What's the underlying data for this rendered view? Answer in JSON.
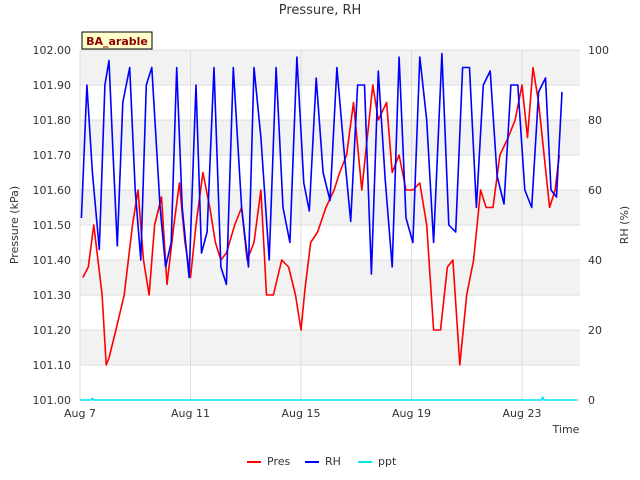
{
  "chart_data": {
    "type": "line",
    "title": "Pressure, RH",
    "site_label": "BA_arable",
    "xlabel": "Time",
    "ylabel_left": "Pressure (kPa)",
    "ylabel_right": "RH (%)",
    "xlim": [
      7,
      25.1
    ],
    "ylim_left": [
      101.0,
      102.0
    ],
    "ylim_right": [
      0,
      100
    ],
    "x_ticks": [
      {
        "value": 7,
        "label": "Aug 7"
      },
      {
        "value": 11,
        "label": "Aug 11"
      },
      {
        "value": 15,
        "label": "Aug 15"
      },
      {
        "value": 19,
        "label": "Aug 19"
      },
      {
        "value": 23,
        "label": "Aug 23"
      }
    ],
    "y_ticks_left": [
      "101.00",
      "101.10",
      "101.20",
      "101.30",
      "101.40",
      "101.50",
      "101.60",
      "101.70",
      "101.80",
      "101.90",
      "102.00"
    ],
    "y_ticks_right": [
      "0",
      "20",
      "40",
      "60",
      "80",
      "100"
    ],
    "grid": true,
    "legend_position": "bottom-center",
    "series": [
      {
        "name": "Pres",
        "axis": "left",
        "color": "#ff0000",
        "x": [
          7.1,
          7.3,
          7.5,
          7.8,
          7.95,
          8.05,
          8.3,
          8.6,
          8.9,
          9.1,
          9.3,
          9.5,
          9.7,
          9.95,
          10.15,
          10.4,
          10.6,
          10.8,
          11.0,
          11.2,
          11.45,
          11.7,
          11.9,
          12.1,
          12.3,
          12.6,
          12.85,
          13.05,
          13.3,
          13.55,
          13.75,
          14.0,
          14.3,
          14.55,
          14.8,
          15.0,
          15.15,
          15.35,
          15.6,
          15.9,
          16.2,
          16.4,
          16.65,
          16.9,
          17.2,
          17.4,
          17.6,
          17.8,
          18.1,
          18.3,
          18.55,
          18.8,
          19.05,
          19.3,
          19.55,
          19.8,
          20.05,
          20.3,
          20.5,
          20.75,
          21.0,
          21.25,
          21.5,
          21.7,
          21.95,
          22.2,
          22.5,
          22.75,
          23.0,
          23.2,
          23.4,
          23.6,
          23.8,
          24.0,
          24.2,
          24.35
        ],
        "values": [
          101.35,
          101.38,
          101.5,
          101.3,
          101.1,
          101.12,
          101.2,
          101.3,
          101.5,
          101.6,
          101.4,
          101.3,
          101.5,
          101.58,
          101.33,
          101.5,
          101.62,
          101.45,
          101.35,
          101.5,
          101.65,
          101.55,
          101.45,
          101.4,
          101.42,
          101.5,
          101.55,
          101.4,
          101.45,
          101.6,
          101.3,
          101.3,
          101.4,
          101.38,
          101.3,
          101.2,
          101.32,
          101.45,
          101.48,
          101.55,
          101.6,
          101.65,
          101.7,
          101.85,
          101.6,
          101.75,
          101.9,
          101.8,
          101.85,
          101.65,
          101.7,
          101.6,
          101.6,
          101.62,
          101.5,
          101.2,
          101.2,
          101.38,
          101.4,
          101.1,
          101.3,
          101.4,
          101.6,
          101.55,
          101.55,
          101.7,
          101.75,
          101.8,
          101.9,
          101.75,
          101.95,
          101.85,
          101.7,
          101.55,
          101.6,
          101.7
        ]
      },
      {
        "name": "RH",
        "axis": "right",
        "color": "#0000ff",
        "x": [
          7.05,
          7.25,
          7.45,
          7.7,
          7.9,
          8.05,
          8.2,
          8.35,
          8.55,
          8.8,
          9.0,
          9.2,
          9.4,
          9.6,
          9.9,
          10.1,
          10.3,
          10.5,
          10.7,
          10.95,
          11.2,
          11.4,
          11.6,
          11.85,
          12.1,
          12.3,
          12.55,
          12.85,
          13.1,
          13.3,
          13.55,
          13.85,
          14.1,
          14.35,
          14.6,
          14.85,
          15.1,
          15.3,
          15.55,
          15.8,
          16.05,
          16.3,
          16.55,
          16.8,
          17.05,
          17.3,
          17.55,
          17.8,
          18.05,
          18.3,
          18.55,
          18.8,
          19.05,
          19.3,
          19.55,
          19.8,
          20.1,
          20.35,
          20.6,
          20.85,
          21.1,
          21.35,
          21.6,
          21.85,
          22.1,
          22.35,
          22.6,
          22.85,
          23.1,
          23.35,
          23.6,
          23.85,
          24.05,
          24.25,
          24.45
        ],
        "values": [
          52,
          90,
          65,
          43,
          90,
          97,
          70,
          44,
          85,
          95,
          60,
          40,
          90,
          95,
          55,
          38,
          45,
          95,
          55,
          35,
          90,
          42,
          48,
          95,
          38,
          33,
          95,
          55,
          38,
          95,
          75,
          40,
          95,
          55,
          45,
          98,
          62,
          54,
          92,
          65,
          57,
          95,
          72,
          51,
          90,
          90,
          36,
          94,
          63,
          38,
          98,
          52,
          45,
          98,
          80,
          45,
          99,
          50,
          48,
          95,
          95,
          55,
          90,
          94,
          64,
          56,
          90,
          90,
          60,
          55,
          88,
          92,
          60,
          58,
          88
        ]
      },
      {
        "name": "ppt",
        "axis": "right",
        "color": "#00e5ee",
        "x": [
          7.0,
          7.4,
          7.45,
          7.5,
          8.0,
          23.6,
          23.7,
          23.75,
          23.8,
          25.0
        ],
        "values": [
          0,
          0,
          0.5,
          0,
          0,
          0,
          0,
          0.8,
          0,
          0
        ]
      }
    ]
  }
}
